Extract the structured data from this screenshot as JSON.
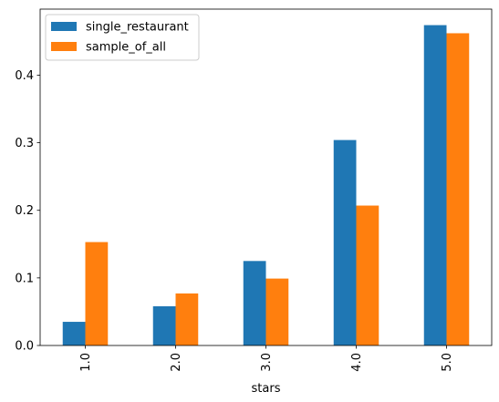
{
  "chart_data": {
    "type": "bar",
    "title": "",
    "xlabel": "stars",
    "ylabel": "",
    "categories": [
      "1.0",
      "2.0",
      "3.0",
      "4.0",
      "5.0"
    ],
    "series": [
      {
        "name": "single_restaurant",
        "color": "#1f77b4",
        "values": [
          0.035,
          0.058,
          0.125,
          0.304,
          0.474
        ]
      },
      {
        "name": "sample_of_all",
        "color": "#ff7f0e",
        "values": [
          0.153,
          0.077,
          0.099,
          0.207,
          0.462
        ]
      }
    ],
    "ylim": [
      0,
      0.4977
    ],
    "yticks": [
      "0.0",
      "0.1",
      "0.2",
      "0.3",
      "0.4"
    ],
    "grid": false,
    "legend_position": "top-left"
  }
}
